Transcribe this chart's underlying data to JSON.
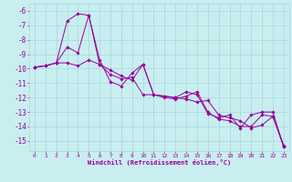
{
  "xlabel": "Windchill (Refroidissement éolien,°C)",
  "ylabel": "",
  "background_color": "#c8eef0",
  "grid_color": "#a8d8dc",
  "line_color": "#990099",
  "x_values": [
    0,
    1,
    2,
    3,
    4,
    5,
    6,
    7,
    8,
    9,
    10,
    11,
    12,
    13,
    14,
    15,
    16,
    17,
    18,
    19,
    20,
    21,
    22,
    23
  ],
  "series": [
    [
      -9.9,
      -9.8,
      -9.6,
      -6.7,
      -6.2,
      -6.3,
      -9.7,
      -10.1,
      -10.5,
      -10.8,
      -9.7,
      -11.8,
      -11.9,
      -12.0,
      -11.6,
      -11.8,
      -13.1,
      -13.4,
      -13.2,
      -14.1,
      -13.2,
      -13.0,
      -13.0,
      -15.4
    ],
    [
      -9.9,
      -9.8,
      -9.6,
      -8.5,
      -8.9,
      -6.3,
      -9.4,
      -10.9,
      -11.2,
      -10.3,
      -9.7,
      -11.8,
      -12.0,
      -12.1,
      -11.9,
      -11.6,
      -13.0,
      -13.5,
      -13.6,
      -14.0,
      -14.0,
      -13.2,
      -13.3,
      -15.4
    ],
    [
      -9.9,
      -9.8,
      -9.6,
      -9.6,
      -9.8,
      -9.4,
      -9.7,
      -10.4,
      -10.7,
      -10.6,
      -11.8,
      -11.8,
      -11.9,
      -12.0,
      -12.1,
      -12.3,
      -12.2,
      -13.2,
      -13.4,
      -13.6,
      -14.1,
      -13.9,
      -13.3,
      -15.3
    ]
  ],
  "xlim": [
    -0.5,
    23.5
  ],
  "ylim": [
    -15.7,
    -5.5
  ],
  "yticks": [
    -6,
    -7,
    -8,
    -9,
    -10,
    -11,
    -12,
    -13,
    -14,
    -15
  ],
  "xticks": [
    0,
    1,
    2,
    3,
    4,
    5,
    6,
    7,
    8,
    9,
    10,
    11,
    12,
    13,
    14,
    15,
    16,
    17,
    18,
    19,
    20,
    21,
    22,
    23
  ]
}
